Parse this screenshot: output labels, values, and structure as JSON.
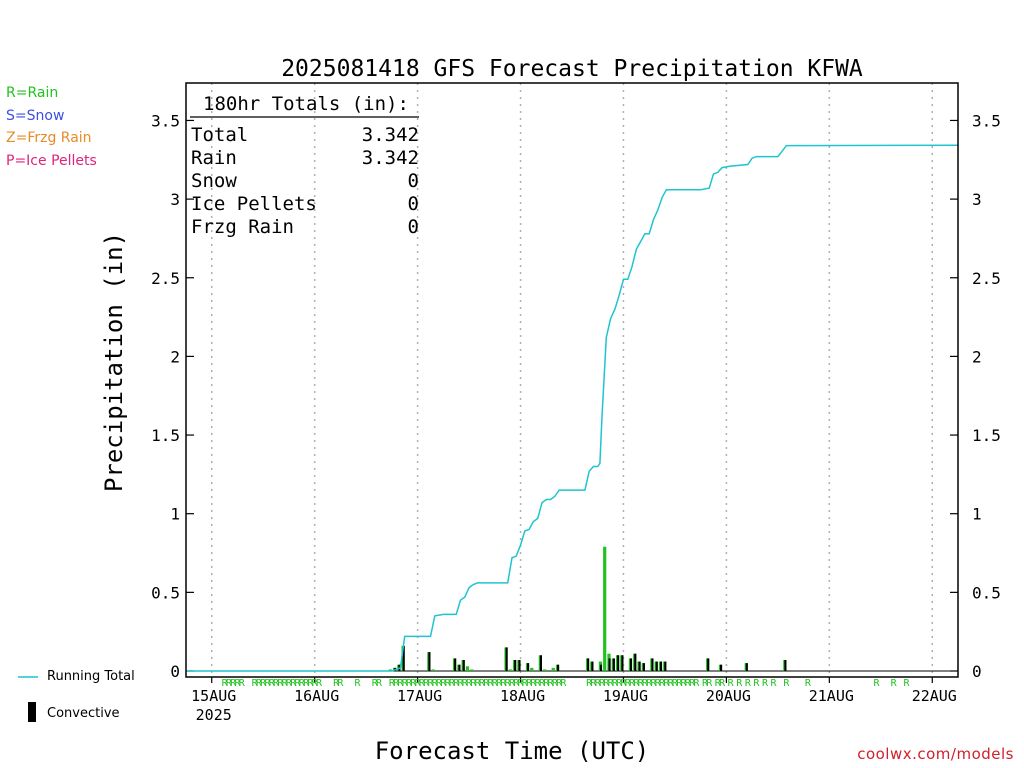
{
  "legend_types": {
    "rain": {
      "label": "R=Rain",
      "color": "#22c21f"
    },
    "snow": {
      "label": "S=Snow",
      "color": "#3b4fe6"
    },
    "frzg": {
      "label": "Z=Frzg Rain",
      "color": "#e98a27"
    },
    "ice": {
      "label": "P=Ice Pellets",
      "color": "#e0237a"
    }
  },
  "bottom_legend": {
    "running_total_label": "Running Total",
    "convective_label": "Convective"
  },
  "credit": "coolwx.com/models",
  "colors": {
    "running_total": "#1fc4cf",
    "convective": "#000000",
    "rain": "#22c21f",
    "grid": "#b0b0b0"
  },
  "chart_data": {
    "type": "bar",
    "title": "2025081418 GFS Forecast Precipitation KFWA",
    "xlabel": "Forecast Time (UTC)",
    "ylabel": "Precipitation (in)",
    "ylim": [
      0,
      3.6
    ],
    "yticks": [
      "0",
      "0.5",
      "1",
      "1.5",
      "2",
      "2.5",
      "3",
      "3.5"
    ],
    "xlim_hours": [
      0,
      180
    ],
    "x_tick_labels": [
      {
        "hour": 6,
        "label": "15AUG",
        "sub": "2025"
      },
      {
        "hour": 30,
        "label": "16AUG"
      },
      {
        "hour": 54,
        "label": "17AUG"
      },
      {
        "hour": 78,
        "label": "18AUG"
      },
      {
        "hour": 102,
        "label": "19AUG"
      },
      {
        "hour": 126,
        "label": "20AUG"
      },
      {
        "hour": 150,
        "label": "21AUG"
      },
      {
        "hour": 174,
        "label": "22AUG"
      }
    ],
    "totals_box": {
      "header": "180hr Totals (in):",
      "rows": [
        {
          "label": "Total",
          "value": "3.342"
        },
        {
          "label": "Rain",
          "value": "3.342"
        },
        {
          "label": "Snow",
          "value": "0"
        },
        {
          "label": "Ice Pellets",
          "value": "0"
        },
        {
          "label": "Frzg Rain",
          "value": "0"
        }
      ]
    },
    "series": [
      {
        "name": "Running Total",
        "type": "line",
        "points": [
          [
            0,
            0
          ],
          [
            48,
            0
          ],
          [
            50,
            0.02
          ],
          [
            51,
            0.22
          ],
          [
            57,
            0.22
          ],
          [
            58,
            0.35
          ],
          [
            60,
            0.36
          ],
          [
            63,
            0.36
          ],
          [
            64,
            0.45
          ],
          [
            65,
            0.47
          ],
          [
            66,
            0.53
          ],
          [
            67,
            0.55
          ],
          [
            68,
            0.56
          ],
          [
            75,
            0.56
          ],
          [
            76,
            0.72
          ],
          [
            77,
            0.73
          ],
          [
            78,
            0.8
          ],
          [
            79,
            0.89
          ],
          [
            80,
            0.9
          ],
          [
            81,
            0.95
          ],
          [
            82,
            0.97
          ],
          [
            83,
            1.07
          ],
          [
            84,
            1.09
          ],
          [
            85,
            1.09
          ],
          [
            86,
            1.11
          ],
          [
            87,
            1.15
          ],
          [
            93,
            1.15
          ],
          [
            94,
            1.27
          ],
          [
            95,
            1.3
          ],
          [
            96,
            1.3
          ],
          [
            96.5,
            1.32
          ],
          [
            97,
            1.62
          ],
          [
            98,
            2.12
          ],
          [
            99,
            2.24
          ],
          [
            100,
            2.3
          ],
          [
            101,
            2.39
          ],
          [
            102,
            2.49
          ],
          [
            103,
            2.49
          ],
          [
            104,
            2.57
          ],
          [
            105,
            2.68
          ],
          [
            106,
            2.73
          ],
          [
            107,
            2.78
          ],
          [
            108,
            2.78
          ],
          [
            109,
            2.87
          ],
          [
            110,
            2.93
          ],
          [
            111,
            3.01
          ],
          [
            112,
            3.06
          ],
          [
            120,
            3.06
          ],
          [
            122,
            3.07
          ],
          [
            123,
            3.16
          ],
          [
            124,
            3.17
          ],
          [
            125,
            3.2
          ],
          [
            127,
            3.21
          ],
          [
            131,
            3.22
          ],
          [
            132,
            3.26
          ],
          [
            133,
            3.27
          ],
          [
            138,
            3.27
          ],
          [
            140,
            3.34
          ],
          [
            180,
            3.342
          ]
        ]
      },
      {
        "name": "Rain",
        "type": "bar",
        "bars": [
          [
            48,
            0.01
          ],
          [
            49,
            0.02
          ],
          [
            50,
            0.04
          ],
          [
            51,
            0.16
          ],
          [
            57,
            0.12
          ],
          [
            58,
            0.01
          ],
          [
            63,
            0.08
          ],
          [
            64,
            0.04
          ],
          [
            65,
            0.07
          ],
          [
            66,
            0.03
          ],
          [
            67,
            0.01
          ],
          [
            75,
            0.15
          ],
          [
            76,
            0.01
          ],
          [
            77,
            0.07
          ],
          [
            78,
            0.07
          ],
          [
            80,
            0.05
          ],
          [
            81,
            0.02
          ],
          [
            83,
            0.1
          ],
          [
            84,
            0.01
          ],
          [
            86,
            0.02
          ],
          [
            87,
            0.04
          ],
          [
            94,
            0.08
          ],
          [
            95,
            0.06
          ],
          [
            97,
            0.06
          ],
          [
            98,
            0.79
          ],
          [
            99,
            0.11
          ],
          [
            100,
            0.08
          ],
          [
            101,
            0.1
          ],
          [
            102,
            0.1
          ],
          [
            104,
            0.08
          ],
          [
            105,
            0.11
          ],
          [
            106,
            0.06
          ],
          [
            107,
            0.05
          ],
          [
            109,
            0.08
          ],
          [
            110,
            0.06
          ],
          [
            111,
            0.06
          ],
          [
            112,
            0.06
          ],
          [
            122,
            0.08
          ],
          [
            125,
            0.04
          ],
          [
            131,
            0.05
          ],
          [
            140,
            0.07
          ]
        ]
      }
    ],
    "convective_bars": [
      [
        49,
        0.02
      ],
      [
        50,
        0.04
      ],
      [
        51,
        0.16
      ],
      [
        57,
        0.12
      ],
      [
        63,
        0.08
      ],
      [
        64,
        0.04
      ],
      [
        65,
        0.07
      ],
      [
        75,
        0.15
      ],
      [
        77,
        0.07
      ],
      [
        78,
        0.07
      ],
      [
        80,
        0.05
      ],
      [
        83,
        0.1
      ],
      [
        87,
        0.04
      ],
      [
        94,
        0.08
      ],
      [
        95,
        0.06
      ],
      [
        97,
        0.04
      ],
      [
        99,
        0.08
      ],
      [
        100,
        0.08
      ],
      [
        101,
        0.1
      ],
      [
        102,
        0.1
      ],
      [
        104,
        0.08
      ],
      [
        105,
        0.11
      ],
      [
        106,
        0.06
      ],
      [
        107,
        0.05
      ],
      [
        109,
        0.08
      ],
      [
        110,
        0.06
      ],
      [
        111,
        0.06
      ],
      [
        112,
        0.06
      ],
      [
        122,
        0.08
      ],
      [
        125,
        0.04
      ],
      [
        131,
        0.05
      ],
      [
        140,
        0.07
      ]
    ],
    "precip_type_markers": {
      "letter": "R",
      "hours": [
        9,
        10,
        11,
        12,
        13,
        16,
        17,
        18,
        19,
        20,
        21,
        22,
        23,
        24,
        25,
        26,
        27,
        28,
        29,
        30,
        31,
        35,
        36,
        40,
        44,
        45,
        48,
        49,
        50,
        51,
        52,
        53,
        54,
        55,
        56,
        57,
        58,
        59,
        60,
        61,
        62,
        63,
        64,
        65,
        66,
        67,
        68,
        69,
        70,
        71,
        72,
        73,
        74,
        75,
        76,
        77,
        78,
        79,
        80,
        81,
        82,
        83,
        84,
        85,
        86,
        87,
        88,
        94,
        95,
        96,
        97,
        98,
        99,
        100,
        101,
        102,
        103,
        104,
        105,
        106,
        107,
        108,
        109,
        110,
        111,
        112,
        113,
        114,
        115,
        116,
        117,
        118,
        119,
        121,
        122,
        124,
        125,
        127,
        129,
        131,
        133,
        135,
        137,
        140,
        145,
        161,
        165,
        168
      ]
    }
  }
}
